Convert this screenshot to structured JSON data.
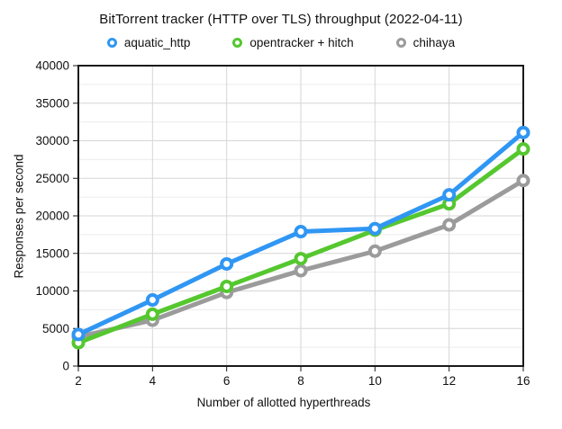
{
  "title": "BitTorrent tracker (HTTP over TLS) throughput (2022-04-11)",
  "chart_data": {
    "type": "line",
    "title": "BitTorrent tracker (HTTP over TLS) throughput (2022-04-11)",
    "x": [
      2,
      4,
      6,
      8,
      10,
      12,
      16
    ],
    "xlabel": "Number of allotted hyperthreads",
    "ylabel": "Responses per second",
    "ylim": [
      0,
      40000
    ],
    "y_major_step": 5000,
    "y_minor_step": 2500,
    "grid": true,
    "legend_position": "top",
    "frame_color": "#1a1a1a",
    "major_grid_color": "#d6d6d6",
    "minor_grid_color": "#ececec",
    "series": [
      {
        "name": "aquatic_http",
        "color": "#3096F3",
        "values": [
          4200,
          8800,
          13600,
          17900,
          18300,
          22800,
          31100
        ]
      },
      {
        "name": "opentracker + hitch",
        "color": "#55C72F",
        "values": [
          3100,
          6900,
          10600,
          14300,
          18100,
          21600,
          28900
        ]
      },
      {
        "name": "chihaya",
        "color": "#9B9B9B",
        "values": [
          3900,
          6100,
          9800,
          12700,
          15300,
          18800,
          24700
        ]
      }
    ]
  }
}
